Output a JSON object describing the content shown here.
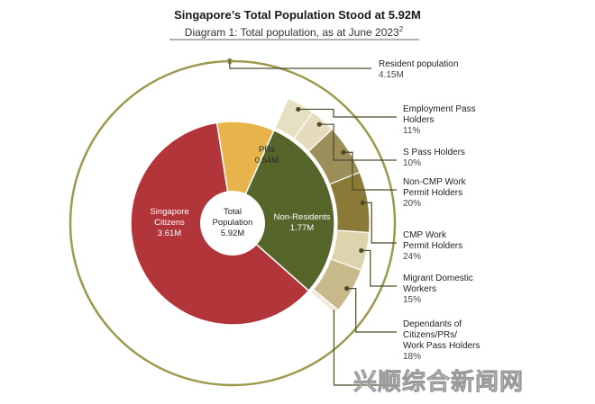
{
  "title": "Singapore’s Total Population Stood at 5.92M",
  "subtitle": "Diagram 1: Total population, as at June 2023",
  "subtitle_sup": "2",
  "watermark": "兴顺综合新闻网",
  "colors": {
    "citizens": "#b2353a",
    "prs": "#e6b44a",
    "non_residents": "#56652a",
    "ring": "#9d9a4e",
    "leader": "#4b4b2a"
  },
  "chart_data": {
    "type": "pie",
    "center": {
      "line1": "Total",
      "line2": "Population",
      "value": "5.92M"
    },
    "slices": [
      {
        "name": "Singapore",
        "name2": "Citizens",
        "value_label": "3.61M",
        "value": 3.61,
        "color": "#b2353a",
        "text_color": "#ffffff"
      },
      {
        "name": "PRs",
        "name2": "",
        "value_label": "0.54M",
        "value": 0.54,
        "color": "#e6b44a",
        "text_color": "#2a2a2a"
      },
      {
        "name": "Non-Residents",
        "name2": "",
        "value_label": "1.77M",
        "value": 1.77,
        "color": "#56652a",
        "text_color": "#ffffff"
      }
    ],
    "resident_annotation": {
      "line1": "Resident population",
      "line2": "4.15M",
      "value": 4.15
    },
    "breakdown": [
      {
        "lines": [
          "Employment Pass",
          "Holders"
        ],
        "pct_label": "11%",
        "pct": 11,
        "color": "#e7dfc2"
      },
      {
        "lines": [
          "S Pass Holders"
        ],
        "pct_label": "10%",
        "pct": 10,
        "color": "#e4dcbc"
      },
      {
        "lines": [
          "Non-CMP Work",
          "Permit Holders"
        ],
        "pct_label": "20%",
        "pct": 20,
        "color": "#9b8e58"
      },
      {
        "lines": [
          "CMP Work",
          "Permit Holders"
        ],
        "pct_label": "24%",
        "pct": 24,
        "color": "#8a7a38"
      },
      {
        "lines": [
          "Migrant Domestic",
          "Workers"
        ],
        "pct_label": "15%",
        "pct": 15,
        "color": "#ddd4ae"
      },
      {
        "lines": [
          "Dependants of",
          "Citizens/PRs/",
          "Work Pass Holders"
        ],
        "pct_label": "18%",
        "pct": 18,
        "color": "#c7b98a"
      },
      {
        "lines": [],
        "pct_label": "",
        "pct": 2,
        "color": "#efeadb"
      }
    ]
  }
}
